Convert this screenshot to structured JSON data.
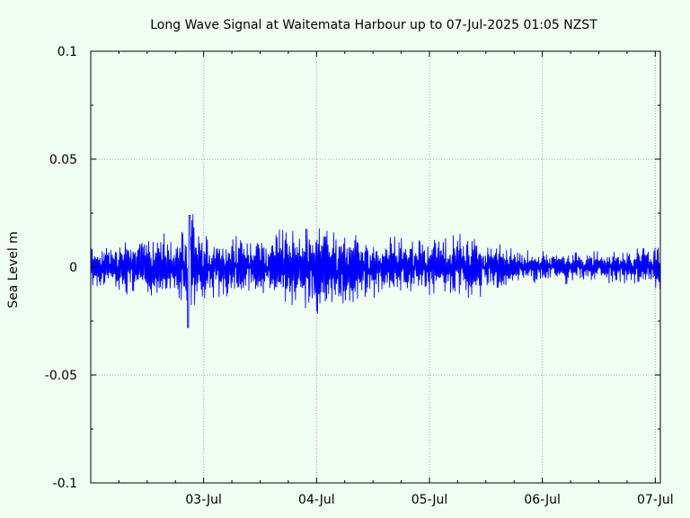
{
  "chart_data": {
    "type": "line",
    "title": "Long Wave Signal at Waitemata Harbour up to 07-Jul-2025 01:05 NZST",
    "xlabel": "",
    "ylabel": "Sea Level m",
    "ylim": [
      -0.1,
      0.1
    ],
    "yticks": [
      "0.1",
      "0.05",
      "0",
      "-0.05",
      "-0.1"
    ],
    "xticks": [
      "03-Jul",
      "04-Jul",
      "05-Jul",
      "06-Jul",
      "07-Jul"
    ],
    "grid": true,
    "line_color": "#0000ff",
    "series": [
      {
        "x": [
          "02-Jul 00:00",
          "02-Jul 06:00",
          "02-Jul 12:00",
          "02-Jul 18:00",
          "02-Jul 20:00",
          "02-Jul 21:00",
          "03-Jul 00:00",
          "03-Jul 06:00",
          "03-Jul 12:00",
          "03-Jul 18:00",
          "04-Jul 00:00",
          "04-Jul 06:00",
          "04-Jul 12:00",
          "04-Jul 18:00",
          "05-Jul 00:00",
          "05-Jul 06:00",
          "05-Jul 12:00",
          "05-Jul 18:00",
          "06-Jul 00:00",
          "06-Jul 06:00",
          "06-Jul 12:00",
          "06-Jul 18:00",
          "07-Jul 00:00",
          "07-Jul 01:05"
        ],
        "envelope": [
          0.008,
          0.01,
          0.012,
          0.012,
          0.018,
          0.024,
          0.013,
          0.013,
          0.014,
          0.015,
          0.018,
          0.016,
          0.012,
          0.012,
          0.011,
          0.013,
          0.01,
          0.007,
          0.006,
          0.006,
          0.006,
          0.007,
          0.009,
          0.008
        ],
        "min_point": {
          "x": "02-Jul 20:45",
          "y": -0.028
        },
        "max_point": {
          "x": "02-Jul 21:00",
          "y": 0.024
        }
      }
    ]
  }
}
